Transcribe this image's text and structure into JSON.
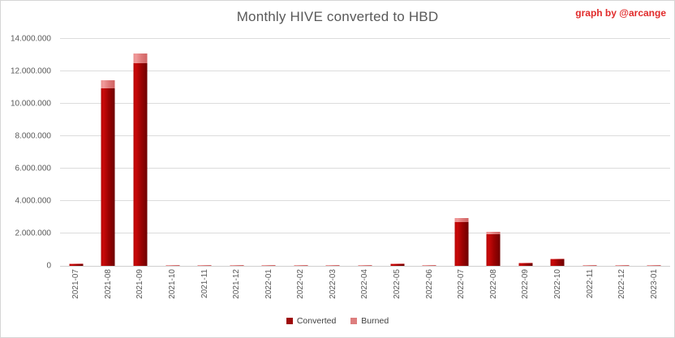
{
  "title": "Monthly HIVE converted to HBD",
  "credit": "graph by @arcange",
  "colors": {
    "converted": "#9e0b0b",
    "burned": "#dd7e7e",
    "credit_text": "#e12b2b",
    "axis_text": "#595959",
    "gridline": "#dcdcdc",
    "background": "#ffffff"
  },
  "chart_data": {
    "type": "bar",
    "stacked": true,
    "title": "Monthly HIVE converted to HBD",
    "xlabel": "",
    "ylabel": "",
    "grid": true,
    "legend_position": "bottom",
    "ylim": [
      0,
      14000000
    ],
    "ytick_interval": 2000000,
    "ytick_labels": [
      "0",
      "2.000.000",
      "4.000.000",
      "6.000.000",
      "8.000.000",
      "10.000.000",
      "12.000.000",
      "14.000.000"
    ],
    "categories": [
      "2021-07",
      "2021-08",
      "2021-09",
      "2021-10",
      "2021-11",
      "2021-12",
      "2022-01",
      "2022-02",
      "2022-03",
      "2022-04",
      "2022-05",
      "2022-06",
      "2022-07",
      "2022-08",
      "2022-09",
      "2022-10",
      "2022-11",
      "2022-12",
      "2023-01"
    ],
    "series": [
      {
        "name": "Converted",
        "color": "#9e0b0b",
        "values": [
          100000,
          10950000,
          12500000,
          0,
          0,
          0,
          0,
          0,
          0,
          0,
          100000,
          0,
          2700000,
          1950000,
          150000,
          400000,
          0,
          0,
          0
        ]
      },
      {
        "name": "Burned",
        "color": "#dd7e7e",
        "values": [
          50000,
          500000,
          600000,
          70000,
          70000,
          70000,
          70000,
          70000,
          70000,
          70000,
          50000,
          70000,
          250000,
          150000,
          50000,
          50000,
          70000,
          70000,
          70000
        ]
      }
    ]
  }
}
